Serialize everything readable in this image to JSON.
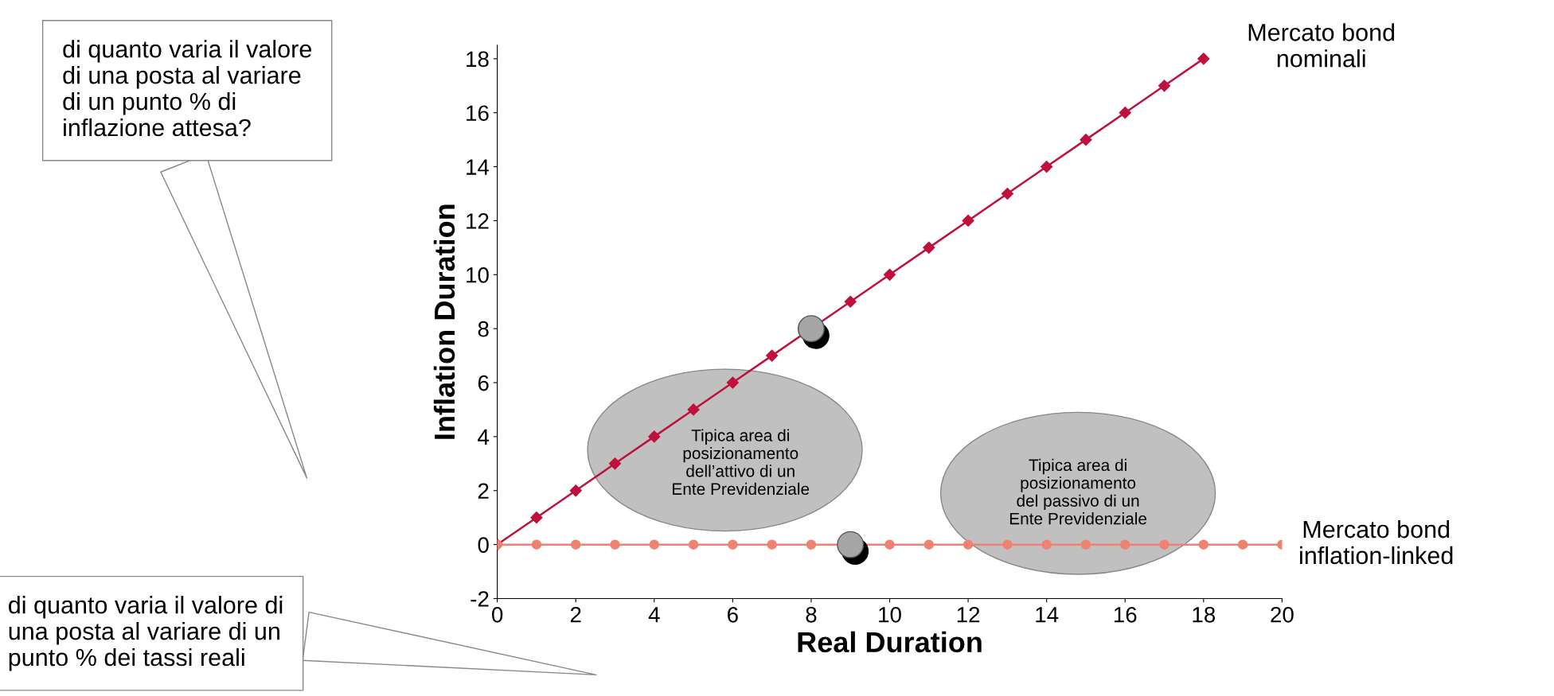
{
  "chart_data": {
    "type": "line",
    "xlabel": "Real Duration",
    "ylabel": "Inflation Duration",
    "xlim": [
      0,
      20
    ],
    "ylim": [
      -2,
      18.5
    ],
    "xticks": [
      0,
      2,
      4,
      6,
      8,
      10,
      12,
      14,
      16,
      18,
      20
    ],
    "yticks": [
      -2,
      0,
      2,
      4,
      6,
      8,
      10,
      12,
      14,
      16,
      18
    ],
    "grid": false,
    "legend": false,
    "series": [
      {
        "name": "Mercato bond nominali",
        "color": "#c0103c",
        "marker": "diamond",
        "x": [
          0,
          1,
          2,
          3,
          4,
          5,
          6,
          7,
          8,
          9,
          10,
          11,
          12,
          13,
          14,
          15,
          16,
          17,
          18
        ],
        "values": [
          0,
          1,
          2,
          3,
          4,
          5,
          6,
          7,
          null,
          9,
          10,
          11,
          12,
          13,
          14,
          15,
          16,
          17,
          18
        ]
      },
      {
        "name": "Mercato bond inflation-linked",
        "color": "#f08272",
        "marker": "circle",
        "x": [
          0,
          1,
          2,
          3,
          4,
          5,
          6,
          7,
          8,
          9,
          10,
          11,
          12,
          13,
          14,
          15,
          16,
          17,
          18,
          19,
          20
        ],
        "values": [
          0,
          0,
          0,
          0,
          0,
          0,
          0,
          0,
          0,
          null,
          0,
          0,
          0,
          0,
          0,
          0,
          0,
          0,
          0,
          0,
          0
        ]
      },
      {
        "type": "scatter",
        "color": "#a6a6a6",
        "marker": "circle",
        "x": [
          8,
          9
        ],
        "values": [
          8,
          0
        ]
      }
    ],
    "annotations": [
      "Tipica area di\nposizionamento\ndell’attivo di un\nEnte Previdenziale",
      "Tipica area di\nposizionamento\ndel passivo di un\nEnte Previdenziale",
      "di quanto varia il valore\ndi una posta al variare\ndi un punto % di\ninflazione attesa?",
      "di quanto varia il valore di\nuna posta al variare di un\npunto % dei tassi reali"
    ]
  }
}
